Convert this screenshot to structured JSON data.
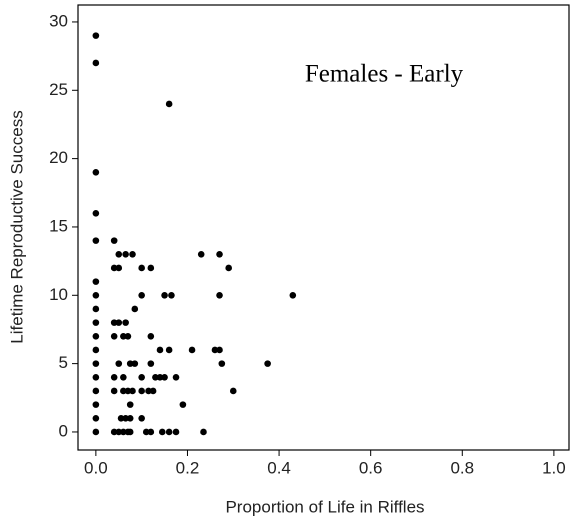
{
  "chart_data": {
    "type": "scatter",
    "annotation": "Females - Early",
    "xlabel": "Proportion of Life in Riffles",
    "ylabel": "Lifetime Reproductive Success",
    "color": "#000000",
    "x": [
      0,
      0,
      0,
      0,
      0,
      0,
      0,
      0,
      0,
      0,
      0,
      0,
      0,
      0,
      0,
      0,
      0,
      0.16,
      0.04,
      0.05,
      0.065,
      0.08,
      0.23,
      0.27,
      0.04,
      0.05,
      0.1,
      0.12,
      0.29,
      0.1,
      0.15,
      0.165,
      0.27,
      0.43,
      0.085,
      0.04,
      0.05,
      0.065,
      0.04,
      0.06,
      0.07,
      0.12,
      0.14,
      0.16,
      0.21,
      0.26,
      0.27,
      0.05,
      0.075,
      0.085,
      0.12,
      0.275,
      0.375,
      0.04,
      0.06,
      0.1,
      0.13,
      0.14,
      0.15,
      0.175,
      0.04,
      0.06,
      0.07,
      0.08,
      0.1,
      0.115,
      0.125,
      0.3,
      0.075,
      0.19,
      0.055,
      0.065,
      0.075,
      0.1,
      0.04,
      0.05,
      0.06,
      0.07,
      0.075,
      0.11,
      0.12,
      0.145,
      0.16,
      0.175,
      0.235
    ],
    "values": [
      29,
      27,
      19,
      16,
      14,
      11,
      10,
      9,
      8,
      7,
      6,
      5,
      4,
      3,
      2,
      1,
      0,
      24,
      14,
      13,
      13,
      13,
      13,
      13,
      12,
      12,
      12,
      12,
      12,
      10,
      10,
      10,
      10,
      10,
      9,
      8,
      8,
      8,
      7,
      7,
      7,
      7,
      6,
      6,
      6,
      6,
      6,
      5,
      5,
      5,
      5,
      5,
      5,
      4,
      4,
      4,
      4,
      4,
      4,
      4,
      3,
      3,
      3,
      3,
      3,
      3,
      3,
      3,
      2,
      2,
      1,
      1,
      1,
      1,
      0,
      0,
      0,
      0,
      0,
      0,
      0,
      0,
      0,
      0,
      0
    ],
    "xlim": [
      -0.039,
      1.033
    ],
    "ylim": [
      -1.32,
      31.24
    ],
    "xticks": [
      {
        "value": 0,
        "label": "0.0"
      },
      0.2,
      0.4,
      0.6,
      0.8,
      {
        "value": 1,
        "label": "1.0"
      }
    ],
    "yticks": [
      0,
      5,
      10,
      15,
      20,
      25,
      30
    ]
  }
}
